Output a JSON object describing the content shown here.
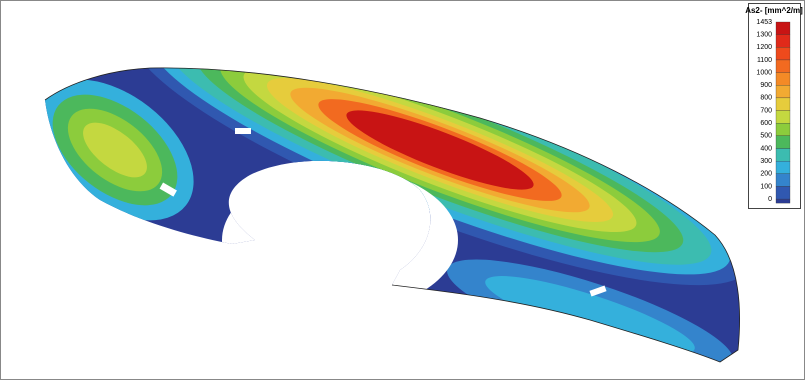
{
  "legend": {
    "title": "As2- [mm^2/m]",
    "levels": [
      {
        "label": "1453",
        "color": "#c81414"
      },
      {
        "label": "1300",
        "color": "#e02a1a"
      },
      {
        "label": "1200",
        "color": "#ee4a1c"
      },
      {
        "label": "1100",
        "color": "#f26a20"
      },
      {
        "label": "1000",
        "color": "#f48a26"
      },
      {
        "label": "900",
        "color": "#f2aa32"
      },
      {
        "label": "800",
        "color": "#e6cc3c"
      },
      {
        "label": "700",
        "color": "#c4d840"
      },
      {
        "label": "600",
        "color": "#8ccc3c"
      },
      {
        "label": "500",
        "color": "#4cb85c"
      },
      {
        "label": "400",
        "color": "#3cbcb0"
      },
      {
        "label": "300",
        "color": "#34b0dc"
      },
      {
        "label": "200",
        "color": "#3484cc"
      },
      {
        "label": "100",
        "color": "#3058b0"
      },
      {
        "label": "0",
        "color": "#2c3c94"
      }
    ]
  }
}
